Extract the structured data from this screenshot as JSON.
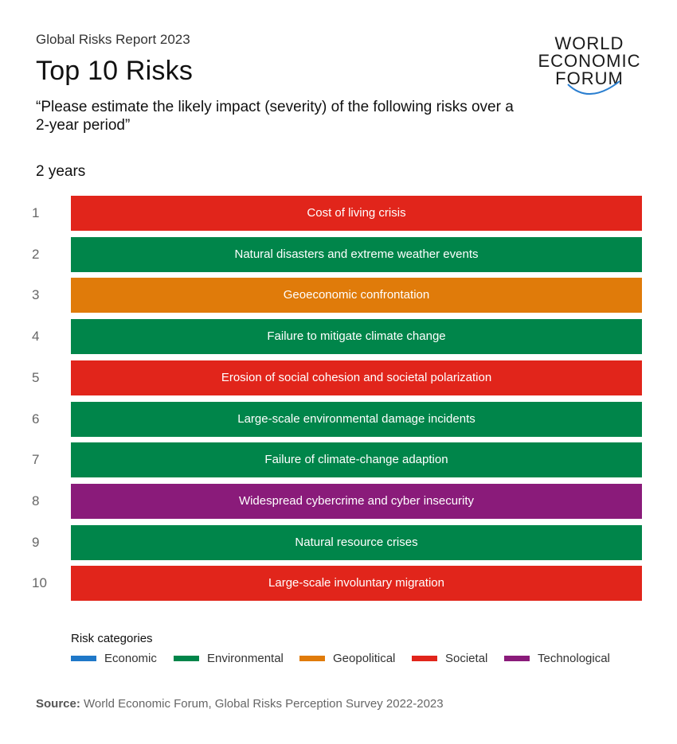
{
  "header": {
    "supertitle": "Global Risks Report 2023",
    "title": "Top 10 Risks",
    "subtitle": "“Please estimate the likely impact (severity) of the following risks over a 2-year period”",
    "period": "2 years"
  },
  "logo": {
    "line1": "WORLD",
    "line2": "ECONOMIC",
    "line3": "FORUM",
    "arc_color": "#2b7fd0"
  },
  "colors": {
    "Economic": "#1f78c8",
    "Environmental": "#00854a",
    "Geopolitical": "#e07b0a",
    "Societal": "#e1251b",
    "Technological": "#8a1b7a"
  },
  "chart_data": {
    "type": "bar",
    "risks": [
      {
        "rank": "1",
        "label": "Cost of living crisis",
        "category": "Societal"
      },
      {
        "rank": "2",
        "label": "Natural disasters and extreme weather events",
        "category": "Environmental"
      },
      {
        "rank": "3",
        "label": "Geoeconomic confrontation",
        "category": "Geopolitical"
      },
      {
        "rank": "4",
        "label": "Failure to mitigate climate change",
        "category": "Environmental"
      },
      {
        "rank": "5",
        "label": "Erosion of social cohesion and societal polarization",
        "category": "Societal"
      },
      {
        "rank": "6",
        "label": "Large-scale environmental damage incidents",
        "category": "Environmental"
      },
      {
        "rank": "7",
        "label": "Failure of climate-change adaption",
        "category": "Environmental"
      },
      {
        "rank": "8",
        "label": "Widespread cybercrime and cyber insecurity",
        "category": "Technological"
      },
      {
        "rank": "9",
        "label": "Natural resource crises",
        "category": "Environmental"
      },
      {
        "rank": "10",
        "label": "Large-scale involuntary migration",
        "category": "Societal"
      }
    ]
  },
  "legend": {
    "title": "Risk categories",
    "items": [
      {
        "label": "Economic"
      },
      {
        "label": "Environmental"
      },
      {
        "label": "Geopolitical"
      },
      {
        "label": "Societal"
      },
      {
        "label": "Technological"
      }
    ]
  },
  "source": {
    "label": "Source:",
    "text": " World Economic Forum, Global Risks Perception Survey 2022-2023"
  }
}
